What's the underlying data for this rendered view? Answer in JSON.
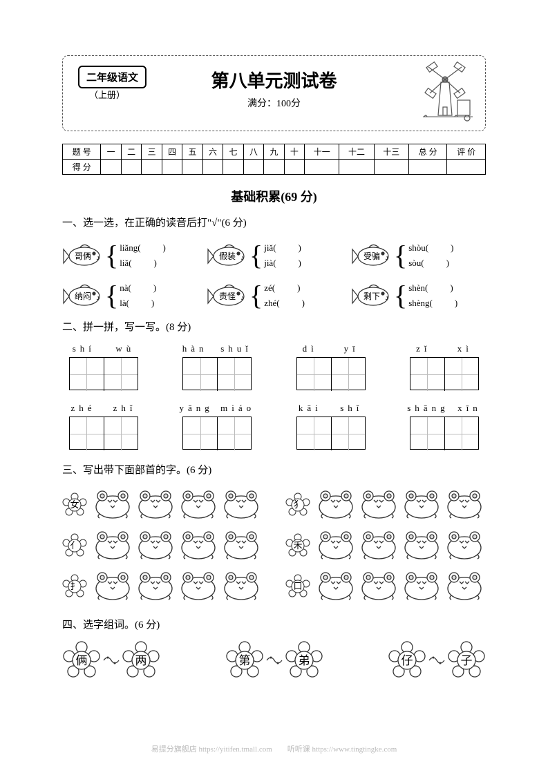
{
  "header": {
    "grade": "二年级语文",
    "book": "（上册）",
    "title": "第八单元测试卷",
    "fullscore": "满分：100分"
  },
  "scoreTable": {
    "row1": [
      "题 号",
      "一",
      "二",
      "三",
      "四",
      "五",
      "六",
      "七",
      "八",
      "九",
      "十",
      "十一",
      "十二",
      "十三",
      "总 分",
      "评 价"
    ],
    "row2Label": "得 分"
  },
  "sectionTitle": "基础积累(69 分)",
  "q1": {
    "title": "一、选一选，在正确的读音后打\"√\"(6 分)",
    "items": [
      {
        "word": "哥俩",
        "p1": "liǎng",
        "p2": "liǎ"
      },
      {
        "word": "假装",
        "p1": "jiǎ",
        "p2": "jià"
      },
      {
        "word": "受骗",
        "p1": "shòu",
        "p2": "sòu"
      },
      {
        "word": "纳闷",
        "p1": "nà",
        "p2": "là"
      },
      {
        "word": "责怪",
        "p1": "zé",
        "p2": "zhé"
      },
      {
        "word": "剩下",
        "p1": "shèn",
        "p2": "shèng"
      }
    ]
  },
  "q2": {
    "title": "二、拼一拼，写一写。(8 分)",
    "items": [
      {
        "a": "shí",
        "b": "wù"
      },
      {
        "a": "hàn",
        "b": "shuǐ"
      },
      {
        "a": "dì",
        "b": "yī"
      },
      {
        "a": "zǐ",
        "b": "xì"
      },
      {
        "a": "zhé",
        "b": "zhǐ"
      },
      {
        "a": "yāng",
        "b": "miáo"
      },
      {
        "a": "kāi",
        "b": "shǐ"
      },
      {
        "a": "shāng",
        "b": "xīn"
      }
    ]
  },
  "q3": {
    "title": "三、写出带下面部首的字。(6 分)",
    "left": [
      "女",
      "亻",
      "扌"
    ],
    "right": [
      "犭",
      "禾",
      "口"
    ]
  },
  "q4": {
    "title": "四、选字组词。(6 分)",
    "pairs": [
      [
        "俩",
        "两"
      ],
      [
        "第",
        "弟"
      ],
      [
        "仔",
        "子"
      ]
    ]
  },
  "footer": {
    "left": "易提分旗舰店  https://yitifen.tmall.com",
    "right": "听听课  https://www.tingtingke.com"
  }
}
